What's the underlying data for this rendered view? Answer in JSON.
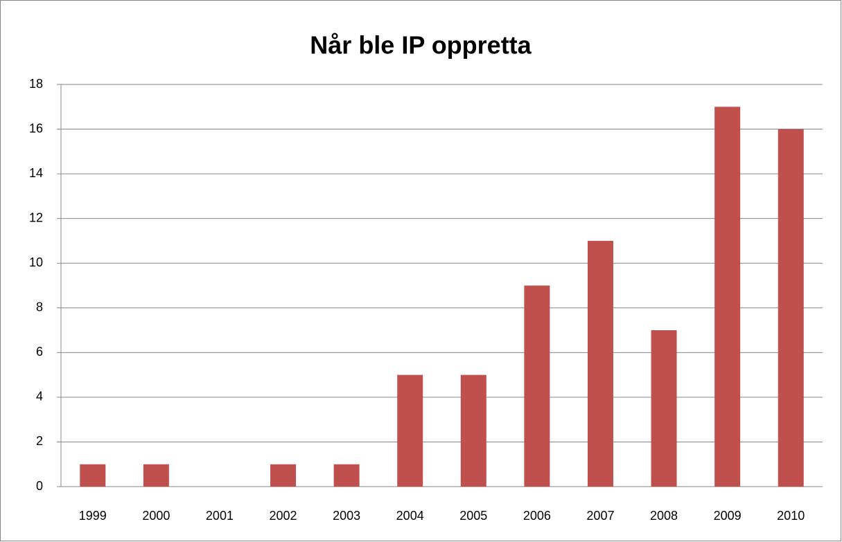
{
  "chart_data": {
    "type": "bar",
    "title": "Når ble IP oppretta",
    "categories": [
      "1999",
      "2000",
      "2001",
      "2002",
      "2003",
      "2004",
      "2005",
      "2006",
      "2007",
      "2008",
      "2009",
      "2010"
    ],
    "values": [
      1,
      1,
      0,
      1,
      1,
      5,
      5,
      9,
      11,
      7,
      17,
      16
    ],
    "color": "#c0504d",
    "ylim": [
      0,
      18
    ],
    "yticks": [
      0,
      2,
      4,
      6,
      8,
      10,
      12,
      14,
      16,
      18
    ],
    "grid": true
  }
}
